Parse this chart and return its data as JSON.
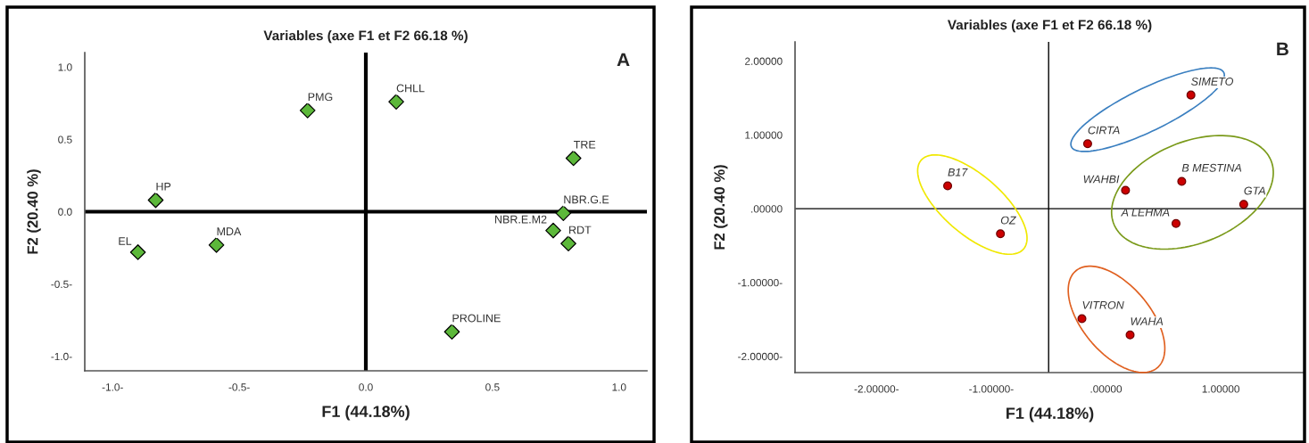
{
  "chart_data": [
    {
      "type": "scatter",
      "title": "Variables (axe F1 et F2 66.18 %)",
      "xlabel": "F1 (44.18%)",
      "ylabel": "F2 (20.40 %)",
      "annotations": [
        "A"
      ],
      "xlim": [
        -1.11,
        1.11
      ],
      "ylim": [
        -1.1,
        1.1
      ],
      "xticks": [
        {
          "value": -1.0,
          "label": "-1.0-"
        },
        {
          "value": -0.5,
          "label": "-0.5-"
        },
        {
          "value": 0,
          "label": "0.0"
        },
        {
          "value": 0.5,
          "label": "0.5"
        },
        {
          "value": 1.0,
          "label": "1.0"
        }
      ],
      "yticks": [
        {
          "value": -1.0,
          "label": "-1.0-"
        },
        {
          "value": -0.5,
          "label": "-0.5-"
        },
        {
          "value": 0,
          "label": "0.0"
        },
        {
          "value": 0.5,
          "label": "0.5"
        },
        {
          "value": 1.0,
          "label": "1.0"
        }
      ],
      "grid": false,
      "marker": "diamond",
      "ref_lines": [
        {
          "axis": "x",
          "value": 0,
          "color": "#000000"
        },
        {
          "axis": "y",
          "value": 0,
          "color": "#000000"
        }
      ],
      "series": [
        {
          "color": "#5cb83a",
          "x": [
            -0.23,
            0.12,
            0.82,
            -0.83,
            0.78,
            0.74,
            0.8,
            -0.9,
            -0.59,
            0.34
          ],
          "values": [
            0.7,
            0.76,
            0.37,
            0.08,
            -0.01,
            -0.13,
            -0.22,
            -0.28,
            -0.23,
            -0.83
          ],
          "value_labels": [
            "PMG",
            "CHLL",
            "TRE",
            "HP",
            "NBR.G.E",
            "NBR.E.M2",
            "RDT",
            "EL",
            "MDA",
            "PROLINE"
          ]
        }
      ]
    },
    {
      "type": "scatter",
      "title": "Variables (axe F1 et F2 66.18 %)",
      "xlabel": "F1 (44.18%)",
      "ylabel": "F2 (20.40 %)",
      "annotations": [
        "B"
      ],
      "xlim": [
        -2.71,
        1.73
      ],
      "ylim": [
        -2.22,
        2.26
      ],
      "xticks": [
        {
          "value": -2,
          "label": "-2.00000-"
        },
        {
          "value": -1,
          "label": "-1.00000-"
        },
        {
          "value": 0,
          "label": ".00000"
        },
        {
          "value": 1,
          "label": "1.00000"
        }
      ],
      "yticks": [
        {
          "value": -2,
          "label": "-2.00000-"
        },
        {
          "value": -1,
          "label": "-1.00000-"
        },
        {
          "value": 0,
          "label": ".00000"
        },
        {
          "value": 1,
          "label": "1.00000"
        },
        {
          "value": 2,
          "label": "2.00000"
        }
      ],
      "grid": false,
      "marker": "circle",
      "ref_lines": [
        {
          "axis": "x",
          "value": -0.5,
          "color": "#000000"
        },
        {
          "axis": "y",
          "value": 0,
          "color": "#000000"
        }
      ],
      "series": [
        {
          "color": "#cc0000",
          "x": [
            0.74,
            -0.16,
            -1.38,
            0.17,
            0.66,
            1.2,
            0.61,
            -0.92,
            -0.21,
            0.21
          ],
          "values": [
            1.54,
            0.88,
            0.31,
            0.25,
            0.37,
            0.06,
            -0.2,
            -0.34,
            -1.49,
            -1.71
          ],
          "value_labels": [
            "SIMETO",
            "CIRTA",
            "B17",
            "WAHBI",
            "B MESTINA",
            "GTA",
            "A LEHMA",
            "OZ",
            "VITRON",
            "WAHA"
          ]
        }
      ]
    }
  ]
}
